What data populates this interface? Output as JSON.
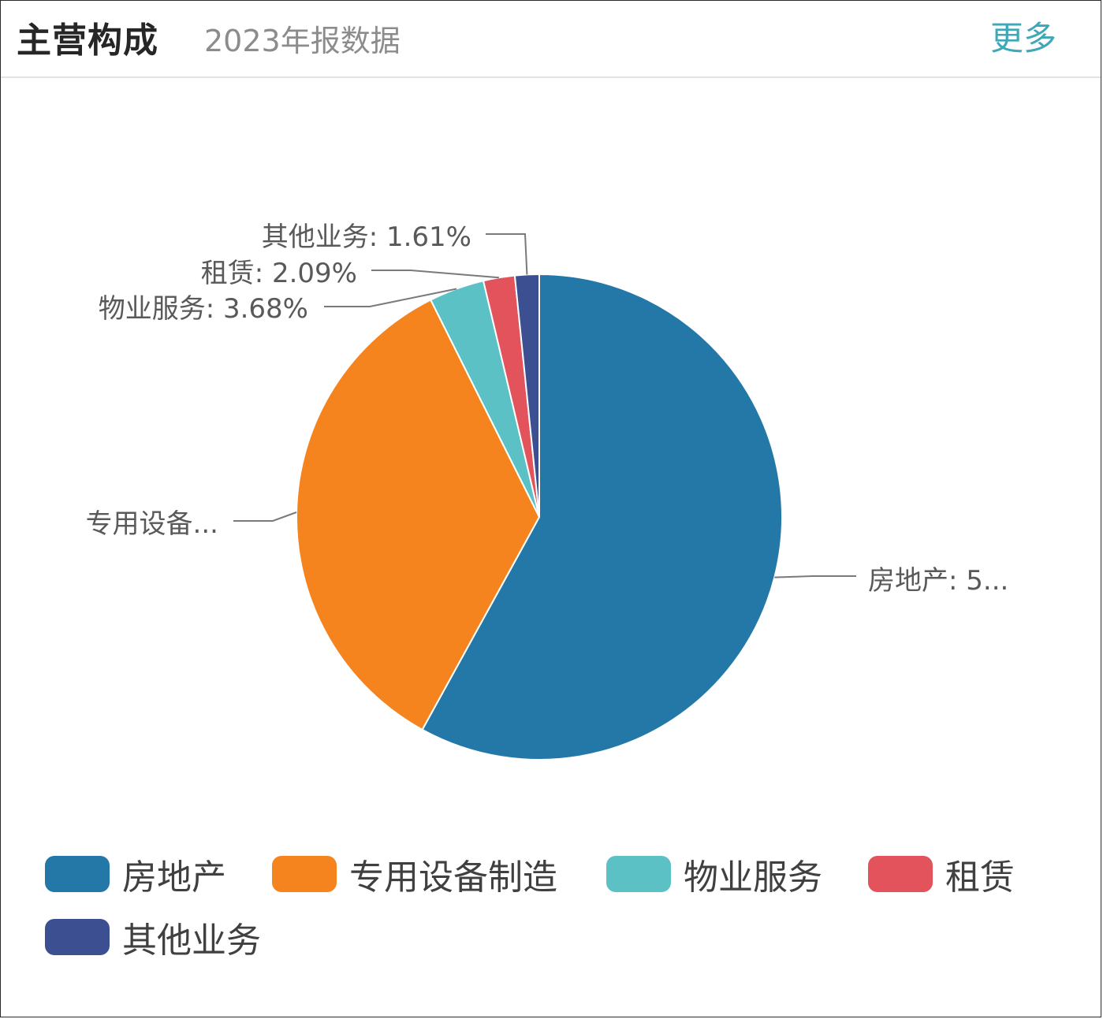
{
  "header": {
    "title": "主营构成",
    "subtitle": "2023年报数据",
    "more_label": "更多"
  },
  "chart_data": {
    "type": "pie",
    "title": "",
    "slices": [
      {
        "name": "房地产",
        "value": 58.0,
        "color": "#2478a8",
        "label": "房地产: 5..."
      },
      {
        "name": "专用设备制造",
        "value": 34.62,
        "color": "#f5841f",
        "label": "专用设备..."
      },
      {
        "name": "物业服务",
        "value": 3.68,
        "color": "#5bc1c4",
        "label": "物业服务: 3.68%"
      },
      {
        "name": "租赁",
        "value": 2.09,
        "color": "#e2535c",
        "label": "租赁: 2.09%"
      },
      {
        "name": "其他业务",
        "value": 1.61,
        "color": "#3c4f91",
        "label": "其他业务: 1.61%"
      }
    ],
    "legend_position": "bottom"
  }
}
